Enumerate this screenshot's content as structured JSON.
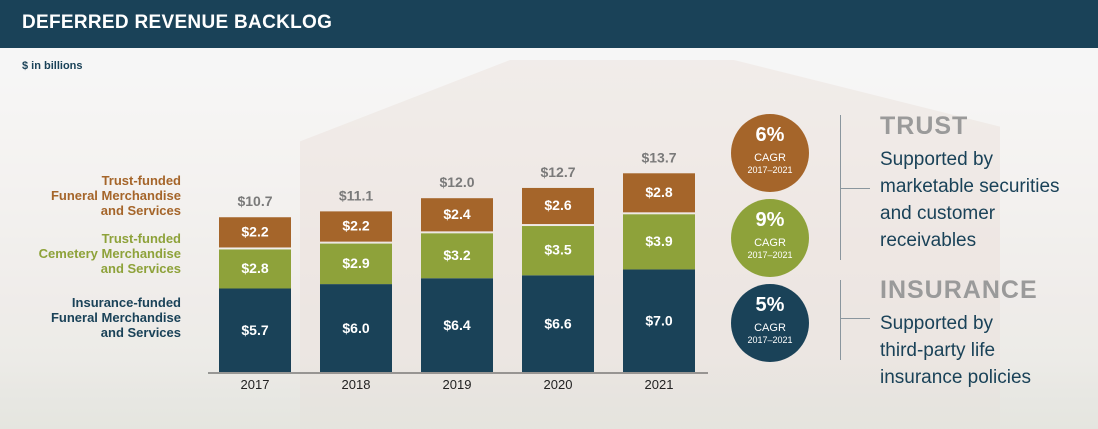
{
  "header": {
    "title": "DEFERRED REVENUE BACKLOG"
  },
  "unit_label": "$ in billions",
  "legend": {
    "trust_funeral": [
      "Trust-funded",
      "Funeral Merchandise",
      "and Services"
    ],
    "trust_cemetery": [
      "Trust-funded",
      "Cemetery Merchandise",
      "and Services"
    ],
    "insurance": [
      "Insurance-funded",
      "Funeral Merchandise",
      "and Services"
    ]
  },
  "colors": {
    "header": "#1a4258",
    "insurance": "#1a4258",
    "cemetery": "#8ea23a",
    "funeral": "#a5652a",
    "muted_title": "#9a9a9a"
  },
  "chart_data": {
    "type": "bar",
    "stacked": true,
    "categories": [
      "2017",
      "2018",
      "2019",
      "2020",
      "2021"
    ],
    "series": [
      {
        "name": "Insurance-funded Funeral Merchandise and Services",
        "values": [
          5.7,
          6.0,
          6.4,
          6.6,
          7.0
        ],
        "labels": [
          "$5.7",
          "$6.0",
          "$6.4",
          "$6.6",
          "$7.0"
        ],
        "color": "#1a4258"
      },
      {
        "name": "Trust-funded Cemetery Merchandise and Services",
        "values": [
          2.8,
          2.9,
          3.2,
          3.5,
          3.9
        ],
        "labels": [
          "$2.8",
          "$2.9",
          "$3.2",
          "$3.5",
          "$3.9"
        ],
        "color": "#8ea23a"
      },
      {
        "name": "Trust-funded Funeral Merchandise and Services",
        "values": [
          2.2,
          2.2,
          2.4,
          2.6,
          2.8
        ],
        "labels": [
          "$2.2",
          "$2.2",
          "$2.4",
          "$2.6",
          "$2.8"
        ],
        "color": "#a5652a"
      }
    ],
    "totals": [
      10.7,
      11.1,
      12.0,
      12.7,
      13.7
    ],
    "total_labels": [
      "$10.7",
      "$11.1",
      "$12.0",
      "$12.7",
      "$13.7"
    ],
    "ylim": [
      0,
      14
    ],
    "grid": false,
    "legend": "left"
  },
  "cagr": [
    {
      "pct": "6%",
      "label": "CAGR",
      "period": "2017–2021",
      "color": "#a5652a"
    },
    {
      "pct": "9%",
      "label": "CAGR",
      "period": "2017–2021",
      "color": "#8ea23a"
    },
    {
      "pct": "5%",
      "label": "CAGR",
      "period": "2017–2021",
      "color": "#1a4258"
    }
  ],
  "trust": {
    "title": "TRUST",
    "lines": [
      "Supported by",
      "marketable securities",
      "and customer",
      "receivables"
    ]
  },
  "insurance": {
    "title": "INSURANCE",
    "lines": [
      "Supported by",
      "third-party life",
      "insurance policies"
    ]
  }
}
